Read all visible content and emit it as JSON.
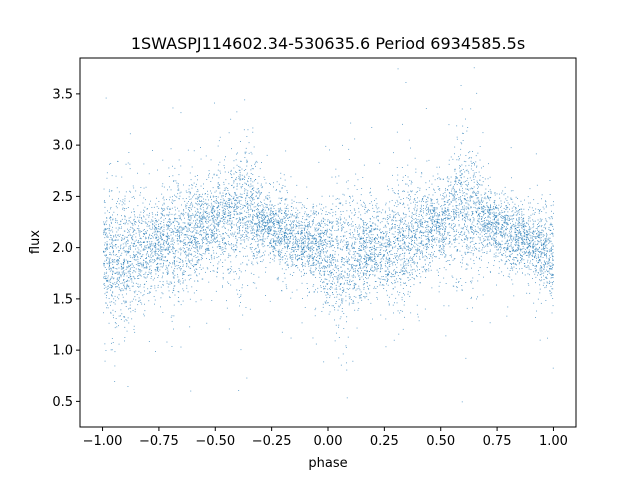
{
  "chart_data": {
    "type": "scatter",
    "title": "1SWASPJ114602.34-530635.6 Period 6934585.5s",
    "xlabel": "phase",
    "ylabel": "flux",
    "xlim": [
      -1.1,
      1.1
    ],
    "ylim": [
      0.25,
      3.85
    ],
    "x_ticks": [
      -1.0,
      -0.75,
      -0.5,
      -0.25,
      0.0,
      0.25,
      0.5,
      0.75,
      1.0
    ],
    "x_tick_labels": [
      "−1.00",
      "−0.75",
      "−0.50",
      "−0.25",
      "0.00",
      "0.25",
      "0.50",
      "0.75",
      "1.00"
    ],
    "y_ticks": [
      0.5,
      1.0,
      1.5,
      2.0,
      2.5,
      3.0,
      3.5
    ],
    "y_tick_labels": [
      "0.5",
      "1.0",
      "1.5",
      "2.0",
      "2.5",
      "3.0",
      "3.5"
    ],
    "grid": false,
    "legend": "none",
    "marker_color": "#1f77b4",
    "series": [
      {
        "profile_phase": [
          -1.0,
          -0.95,
          -0.9,
          -0.85,
          -0.8,
          -0.75,
          -0.7,
          -0.65,
          -0.6,
          -0.55,
          -0.5,
          -0.45,
          -0.4,
          -0.35,
          -0.3,
          -0.25,
          -0.2,
          -0.15,
          -0.1,
          -0.05,
          0.0,
          0.05,
          0.1,
          0.15,
          0.2,
          0.25,
          0.3,
          0.35,
          0.4,
          0.45,
          0.5,
          0.55,
          0.6,
          0.65,
          0.7,
          0.75,
          0.8,
          0.85,
          0.9,
          0.95,
          1.0
        ],
        "profile_mean_flux": [
          1.95,
          1.9,
          1.9,
          1.95,
          2.0,
          2.05,
          2.05,
          2.1,
          2.15,
          2.2,
          2.2,
          2.3,
          2.35,
          2.35,
          2.25,
          2.2,
          2.15,
          2.1,
          2.05,
          2.0,
          1.9,
          1.85,
          1.9,
          1.95,
          2.0,
          2.0,
          2.05,
          2.1,
          2.15,
          2.2,
          2.2,
          2.3,
          2.35,
          2.35,
          2.25,
          2.2,
          2.15,
          2.1,
          2.05,
          2.0,
          1.95
        ],
        "profile_spread": [
          0.25,
          0.35,
          0.3,
          0.25,
          0.25,
          0.2,
          0.3,
          0.3,
          0.25,
          0.2,
          0.2,
          0.25,
          0.35,
          0.3,
          0.15,
          0.15,
          0.2,
          0.15,
          0.15,
          0.2,
          0.25,
          0.35,
          0.3,
          0.25,
          0.2,
          0.2,
          0.3,
          0.3,
          0.25,
          0.2,
          0.2,
          0.25,
          0.35,
          0.3,
          0.15,
          0.15,
          0.2,
          0.15,
          0.15,
          0.2,
          0.25
        ],
        "n_points": 9000,
        "min_flux": 0.42,
        "max_flux": 3.78
      }
    ]
  }
}
